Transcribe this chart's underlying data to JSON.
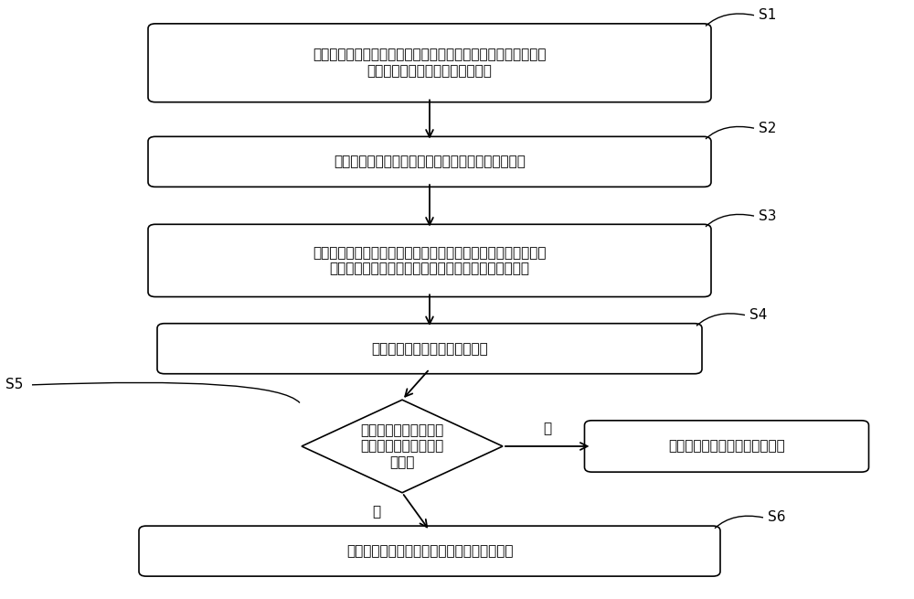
{
  "bg_color": "#ffffff",
  "box_edge_color": "#000000",
  "box_face_color": "#ffffff",
  "arrow_color": "#000000",
  "text_color": "#000000",
  "font_size": 11,
  "s1_text": "相机拍摄左右眼图像，判断左右眼是否是睁开状态，当眼睛处于\n睁开状态时激光导航模块开始工作",
  "s2_text": "激光导航模块检测喷头与患者左右眼角膜顶点的距离",
  "s3_text": "根据距离以及数据储存模块中的喷射气体传导公式计算压缩空气\n发生模块的气体喷射压力、方向、开始时间、持续时间",
  "s4_text": "压缩空气发生模块开始喷射气体",
  "s5_text": "相机拍摄左右眼图像，\n判断左右眼是否产生眨\n眼反射",
  "s5b_text": "重新等待下一次的开始检查指令",
  "s6_text": "根据拍摄图像视频开始分析左右眼睑眨眼反射",
  "yes_label": "是",
  "no_label": "否",
  "s1_label": "S1",
  "s2_label": "S2",
  "s3_label": "S3",
  "s4_label": "S4",
  "s5_label": "S5",
  "s6_label": "S6"
}
